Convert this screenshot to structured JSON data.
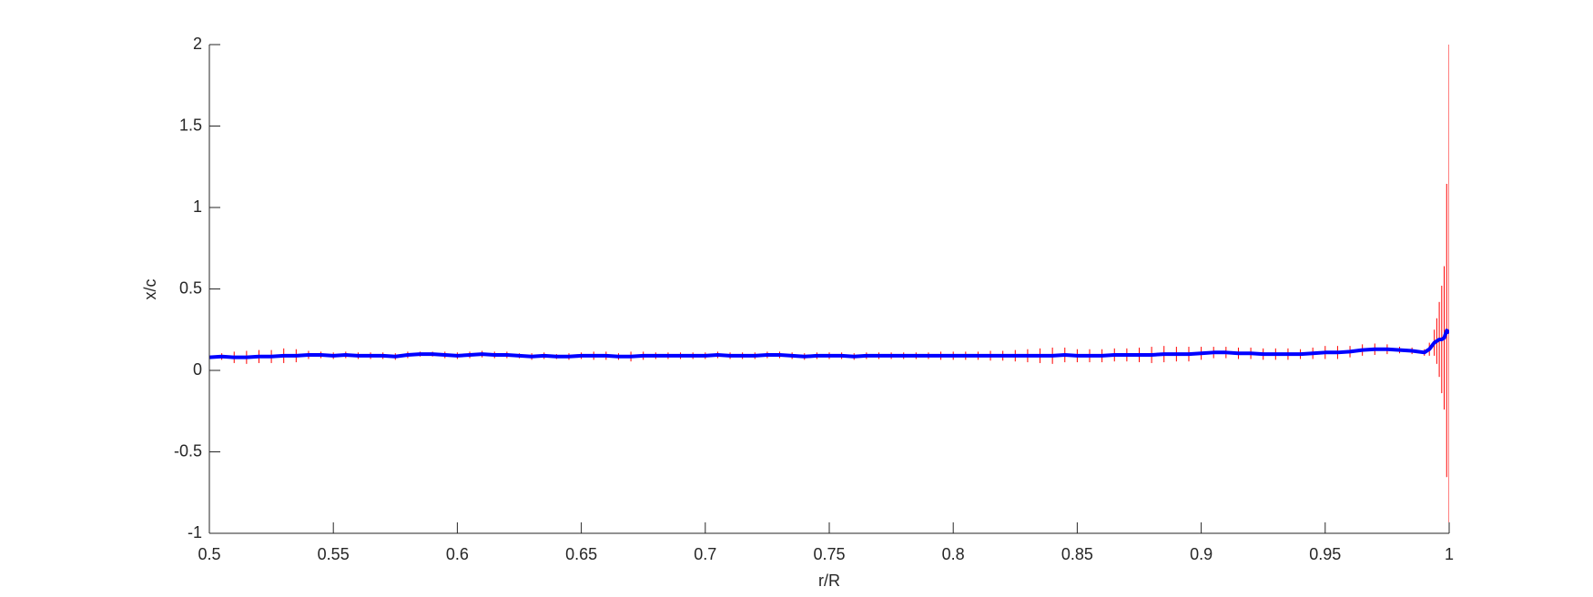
{
  "chart_data": {
    "type": "errorbar",
    "xlabel": "r/R",
    "ylabel": "x/c",
    "xlim": [
      0.5,
      1
    ],
    "ylim": [
      -1,
      2
    ],
    "xticks": [
      0.5,
      0.55,
      0.6,
      0.65,
      0.7,
      0.75,
      0.8,
      0.85,
      0.9,
      0.95,
      1
    ],
    "yticks": [
      -1,
      -0.5,
      0,
      0.5,
      1,
      1.5,
      2
    ],
    "grid": false,
    "x": [
      0.5,
      0.505,
      0.51,
      0.515,
      0.52,
      0.525,
      0.53,
      0.535,
      0.54,
      0.545,
      0.55,
      0.555,
      0.56,
      0.565,
      0.57,
      0.575,
      0.58,
      0.585,
      0.59,
      0.595,
      0.6,
      0.605,
      0.61,
      0.615,
      0.62,
      0.625,
      0.63,
      0.635,
      0.64,
      0.645,
      0.65,
      0.655,
      0.66,
      0.665,
      0.67,
      0.675,
      0.68,
      0.685,
      0.69,
      0.695,
      0.7,
      0.705,
      0.71,
      0.715,
      0.72,
      0.725,
      0.73,
      0.735,
      0.74,
      0.745,
      0.75,
      0.755,
      0.76,
      0.765,
      0.77,
      0.775,
      0.78,
      0.785,
      0.79,
      0.795,
      0.8,
      0.805,
      0.81,
      0.815,
      0.82,
      0.825,
      0.83,
      0.835,
      0.84,
      0.845,
      0.85,
      0.855,
      0.86,
      0.865,
      0.87,
      0.875,
      0.88,
      0.885,
      0.89,
      0.895,
      0.9,
      0.905,
      0.91,
      0.915,
      0.92,
      0.925,
      0.93,
      0.935,
      0.94,
      0.945,
      0.95,
      0.955,
      0.96,
      0.965,
      0.97,
      0.975,
      0.98,
      0.985,
      0.99,
      0.992,
      0.994,
      0.995,
      0.996,
      0.997,
      0.998,
      0.999,
      1
    ],
    "series": [
      {
        "color": "#0000ff",
        "error_color": "#ff0000",
        "values": [
          0.08,
          0.085,
          0.08,
          0.08,
          0.085,
          0.085,
          0.09,
          0.09,
          0.095,
          0.095,
          0.09,
          0.095,
          0.09,
          0.09,
          0.09,
          0.085,
          0.095,
          0.1,
          0.1,
          0.095,
          0.09,
          0.095,
          0.1,
          0.095,
          0.095,
          0.09,
          0.085,
          0.09,
          0.085,
          0.085,
          0.09,
          0.09,
          0.09,
          0.085,
          0.085,
          0.09,
          0.09,
          0.09,
          0.09,
          0.09,
          0.09,
          0.095,
          0.09,
          0.09,
          0.09,
          0.095,
          0.095,
          0.09,
          0.085,
          0.09,
          0.09,
          0.09,
          0.085,
          0.09,
          0.09,
          0.09,
          0.09,
          0.09,
          0.09,
          0.09,
          0.09,
          0.09,
          0.09,
          0.09,
          0.09,
          0.09,
          0.09,
          0.09,
          0.09,
          0.095,
          0.09,
          0.09,
          0.09,
          0.095,
          0.095,
          0.095,
          0.095,
          0.1,
          0.1,
          0.1,
          0.105,
          0.11,
          0.11,
          0.105,
          0.105,
          0.1,
          0.1,
          0.1,
          0.1,
          0.105,
          0.11,
          0.11,
          0.115,
          0.125,
          0.13,
          0.13,
          0.125,
          0.12,
          0.11,
          0.13,
          0.17,
          0.18,
          0.19,
          0.19,
          0.2,
          0.245,
          0.23
        ],
        "errors": [
          0.01,
          0.02,
          0.035,
          0.04,
          0.04,
          0.04,
          0.045,
          0.04,
          0.025,
          0.02,
          0.02,
          0.02,
          0.02,
          0.02,
          0.02,
          0.02,
          0.02,
          0.015,
          0.015,
          0.02,
          0.02,
          0.02,
          0.02,
          0.02,
          0.02,
          0.015,
          0.02,
          0.02,
          0.015,
          0.02,
          0.02,
          0.025,
          0.025,
          0.02,
          0.03,
          0.025,
          0.02,
          0.02,
          0.02,
          0.02,
          0.02,
          0.02,
          0.02,
          0.02,
          0.02,
          0.02,
          0.02,
          0.02,
          0.02,
          0.02,
          0.02,
          0.02,
          0.02,
          0.02,
          0.02,
          0.02,
          0.02,
          0.02,
          0.02,
          0.025,
          0.025,
          0.025,
          0.025,
          0.03,
          0.03,
          0.035,
          0.04,
          0.045,
          0.05,
          0.045,
          0.04,
          0.04,
          0.04,
          0.04,
          0.04,
          0.045,
          0.05,
          0.05,
          0.045,
          0.045,
          0.04,
          0.035,
          0.035,
          0.035,
          0.035,
          0.035,
          0.035,
          0.035,
          0.03,
          0.035,
          0.04,
          0.04,
          0.035,
          0.035,
          0.035,
          0.03,
          0.02,
          0.02,
          0.02,
          0.04,
          0.08,
          0.14,
          0.23,
          0.33,
          0.44,
          0.9,
          1.77
        ]
      }
    ]
  }
}
